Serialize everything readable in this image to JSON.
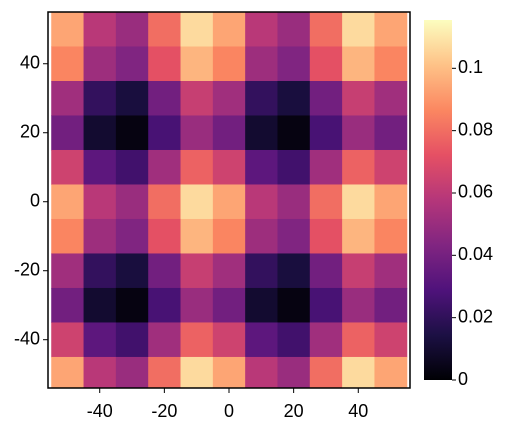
{
  "chart_data": {
    "type": "heatmap",
    "x": [
      -50,
      -40,
      -30,
      -20,
      -10,
      0,
      10,
      20,
      30,
      40,
      50
    ],
    "y": [
      50,
      40,
      30,
      20,
      10,
      0,
      -10,
      -20,
      -30,
      -40,
      -50
    ],
    "cell_size": 10,
    "z": [
      [
        0.094,
        0.059,
        0.05,
        0.08,
        0.107,
        0.094,
        0.059,
        0.05,
        0.08,
        0.107,
        0.094
      ],
      [
        0.086,
        0.051,
        0.043,
        0.072,
        0.098,
        0.086,
        0.051,
        0.043,
        0.072,
        0.098,
        0.086
      ],
      [
        0.052,
        0.021,
        0.013,
        0.039,
        0.063,
        0.052,
        0.021,
        0.013,
        0.039,
        0.063,
        0.052
      ],
      [
        0.039,
        0.01,
        0.003,
        0.027,
        0.05,
        0.039,
        0.01,
        0.003,
        0.027,
        0.05,
        0.039
      ],
      [
        0.065,
        0.033,
        0.025,
        0.052,
        0.077,
        0.065,
        0.033,
        0.025,
        0.052,
        0.077,
        0.065
      ],
      [
        0.094,
        0.059,
        0.05,
        0.08,
        0.107,
        0.094,
        0.059,
        0.05,
        0.08,
        0.107,
        0.094
      ],
      [
        0.086,
        0.051,
        0.043,
        0.072,
        0.098,
        0.086,
        0.051,
        0.043,
        0.072,
        0.098,
        0.086
      ],
      [
        0.052,
        0.021,
        0.013,
        0.039,
        0.063,
        0.052,
        0.021,
        0.013,
        0.039,
        0.063,
        0.052
      ],
      [
        0.039,
        0.01,
        0.003,
        0.027,
        0.05,
        0.039,
        0.01,
        0.003,
        0.027,
        0.05,
        0.039
      ],
      [
        0.065,
        0.033,
        0.025,
        0.052,
        0.077,
        0.065,
        0.033,
        0.025,
        0.052,
        0.077,
        0.065
      ],
      [
        0.094,
        0.059,
        0.05,
        0.08,
        0.107,
        0.094,
        0.059,
        0.05,
        0.08,
        0.107,
        0.094
      ]
    ],
    "xlim": [
      -56,
      56
    ],
    "ylim": [
      -54,
      55
    ],
    "xticks": [
      -40,
      -20,
      0,
      20,
      40
    ],
    "yticks": [
      -40,
      -20,
      0,
      20,
      40
    ],
    "clim": [
      0,
      0.1155
    ],
    "cticks": [
      0,
      0.02,
      0.04,
      0.06,
      0.08,
      0.1
    ],
    "colormap": [
      "#000004",
      "#1c1044",
      "#4f127b",
      "#812581",
      "#b5367a",
      "#e55064",
      "#fb8761",
      "#fec287",
      "#fcfdbf"
    ]
  }
}
